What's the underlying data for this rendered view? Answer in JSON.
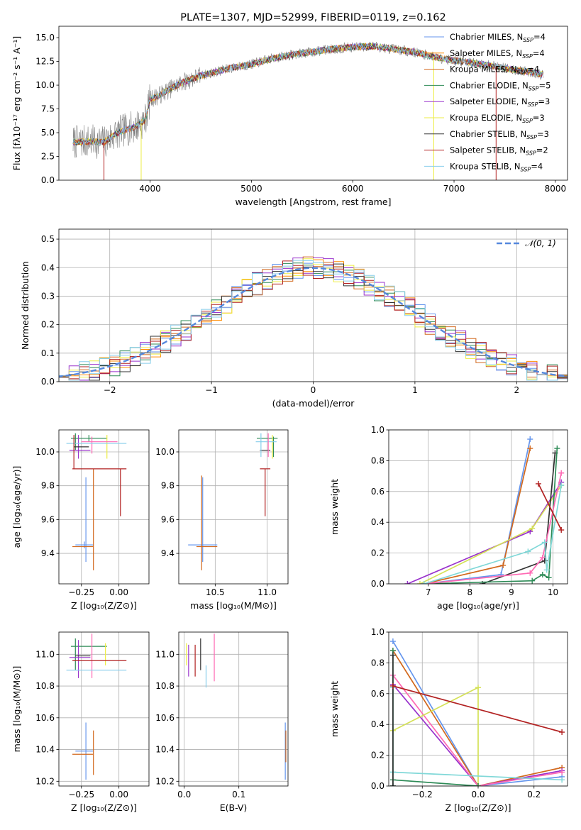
{
  "chart_data": [
    {
      "type": "line",
      "title": "PLATE=1307, MJD=52999, FIBERID=0119, z=0.162",
      "xlabel": "wavelength [Angstrom, rest frame]",
      "ylabel": "Flux [fλ10⁻¹⁷ erg cm⁻² s⁻¹ A⁻¹]",
      "xlim": [
        3100,
        8120
      ],
      "ylim": [
        0,
        16.2
      ],
      "xticks": [
        4000,
        5000,
        6000,
        7000,
        8000
      ],
      "yticks": [
        0.0,
        2.5,
        5.0,
        7.5,
        10.0,
        12.5,
        15.0
      ],
      "ytick_labels": [
        "0.0",
        "2.5",
        "5.0",
        "7.5",
        "10.0",
        "12.5",
        "15.0"
      ],
      "grid": false,
      "legend_position": "right",
      "continuum": {
        "x": [
          3250,
          3400,
          3550,
          3650,
          3750,
          3850,
          3950,
          4000,
          4100,
          4300,
          4500,
          4800,
          5000,
          5200,
          5400,
          5600,
          5800,
          6000,
          6200,
          6400,
          6600,
          6800,
          7000,
          7200,
          7400,
          7600,
          7800,
          7870
        ],
        "y": [
          4.0,
          4.1,
          4.0,
          4.8,
          5.3,
          5.6,
          6.3,
          8.5,
          9.0,
          10.2,
          11.0,
          11.8,
          12.2,
          12.8,
          13.2,
          13.5,
          13.8,
          14.0,
          14.1,
          13.8,
          13.5,
          13.0,
          12.6,
          12.3,
          12.0,
          11.6,
          11.3,
          11.1
        ]
      },
      "series": [
        {
          "name": "Chabrier MILES, N_SSP=4",
          "color": "#6495ed"
        },
        {
          "name": "Salpeter MILES, N_SSP=4",
          "color": "#ff8c00"
        },
        {
          "name": "Kroupa MILES, N_SSP=4",
          "color": "#d2691e"
        },
        {
          "name": "Chabrier ELODIE, N_SSP=5",
          "color": "#2e8b57"
        },
        {
          "name": "Salpeter ELODIE, N_SSP=3",
          "color": "#9932cc"
        },
        {
          "name": "Kroupa ELODIE, N_SSP=3",
          "color": "#eeee44"
        },
        {
          "name": "Chabrier STELIB, N_SSP=3",
          "color": "#333333"
        },
        {
          "name": "Salpeter STELIB, N_SSP=2",
          "color": "#b22222"
        },
        {
          "name": "Kroupa STELIB, N_SSP=4",
          "color": "#87ceeb"
        }
      ],
      "legend": [
        {
          "name": "Chabrier MILES, N",
          "sub": "SSP",
          "tail": "=4"
        },
        {
          "name": "Salpeter MILES, N",
          "sub": "SSP",
          "tail": "=4"
        },
        {
          "name": "Kroupa MILES, N",
          "sub": "SSP",
          "tail": "=4"
        },
        {
          "name": "Chabrier ELODIE, N",
          "sub": "SSP",
          "tail": "=5"
        },
        {
          "name": "Salpeter ELODIE, N",
          "sub": "SSP",
          "tail": "=3"
        },
        {
          "name": "Kroupa ELODIE, N",
          "sub": "SSP",
          "tail": "=3"
        },
        {
          "name": "Chabrier STELIB, N",
          "sub": "SSP",
          "tail": "=3"
        },
        {
          "name": "Salpeter STELIB, N",
          "sub": "SSP",
          "tail": "=2"
        },
        {
          "name": "Kroupa STELIB, N",
          "sub": "SSP",
          "tail": "=4"
        }
      ],
      "data_color": "#808080"
    },
    {
      "type": "histogram",
      "xlabel": "(data-model)/error",
      "ylabel": "Normed distribution",
      "xlim": [
        -2.5,
        2.5
      ],
      "ylim": [
        0,
        0.535
      ],
      "xticks": [
        -2,
        -1,
        0,
        1,
        2
      ],
      "xtick_labels": [
        "−2",
        "−1",
        "0",
        "1",
        "2"
      ],
      "yticks": [
        0.0,
        0.1,
        0.2,
        0.3,
        0.4,
        0.5
      ],
      "ytick_labels": [
        "0.0",
        "0.1",
        "0.2",
        "0.3",
        "0.4",
        "0.5"
      ],
      "grid": true,
      "bins": {
        "start": -2.5,
        "width": 0.1,
        "count": 50
      },
      "gaussian": {
        "mean": 0,
        "sigma": 1,
        "label": "𝒩(0, 1)",
        "color": "#5588dd"
      },
      "series_colors": [
        "#6495ed",
        "#ff8c00",
        "#d2691e",
        "#2e8b57",
        "#9932cc",
        "#eeee44",
        "#333333",
        "#b22222",
        "#87ceeb"
      ]
    },
    {
      "type": "scatter",
      "name": "age-vs-metallicity",
      "xlabel": "Z [log₁₀(Z/Z⊙)]",
      "ylabel": "age  [log₁₀(age/yr)]",
      "xlim": [
        -0.4,
        0.2
      ],
      "ylim": [
        9.22,
        10.13
      ],
      "xticks": [
        -0.25,
        0.0
      ],
      "xtick_labels": [
        "−0.25",
        "0.00"
      ],
      "yticks": [
        9.4,
        9.6,
        9.8,
        10.0
      ],
      "ytick_labels": [
        "9.4",
        "9.6",
        "9.8",
        "10.0"
      ],
      "grid": true,
      "errorbars": [
        {
          "x": -0.23,
          "xerr": 0.06,
          "y": 9.45,
          "yerr": 0.02,
          "color": "#6495ed"
        },
        {
          "x": -0.22,
          "xerr": 0.0,
          "y": 9.6,
          "yerr": 0.25,
          "color": "#6495ed"
        },
        {
          "x": -0.24,
          "xerr": 0.07,
          "y": 9.44,
          "yerr": 0.0,
          "color": "#d2691e"
        },
        {
          "x": -0.17,
          "xerr": 0.0,
          "y": 9.6,
          "yerr": 0.3,
          "color": "#d2691e"
        },
        {
          "x": -0.2,
          "xerr": 0.12,
          "y": 10.08,
          "yerr": 0.02,
          "color": "#2e8b57"
        },
        {
          "x": -0.29,
          "xerr": 0.0,
          "y": 10.06,
          "yerr": 0.05,
          "color": "#2e8b57"
        },
        {
          "x": -0.26,
          "xerr": 0.07,
          "y": 10.01,
          "yerr": 0.0,
          "color": "#9932cc"
        },
        {
          "x": -0.27,
          "xerr": 0.0,
          "y": 10.03,
          "yerr": 0.07,
          "color": "#9932cc"
        },
        {
          "x": -0.08,
          "xerr": 0.0,
          "y": 10.03,
          "yerr": 0.07,
          "color": "#eeee44"
        },
        {
          "x": -0.25,
          "xerr": 0.05,
          "y": 10.03,
          "yerr": 0.0,
          "color": "#333333"
        },
        {
          "x": -0.13,
          "xerr": 0.12,
          "y": 10.06,
          "yerr": 0.0,
          "color": "#ff69b4"
        },
        {
          "x": -0.18,
          "xerr": 0.0,
          "y": 10.04,
          "yerr": 0.05,
          "color": "#ff69b4"
        },
        {
          "x": -0.15,
          "xerr": 0.2,
          "y": 10.05,
          "yerr": 0.0,
          "color": "#87ceeb"
        },
        {
          "x": -0.13,
          "xerr": 0.18,
          "y": 9.9,
          "yerr": 0.0,
          "color": "#b22222"
        },
        {
          "x": -0.3,
          "xerr": 0.0,
          "y": 10.0,
          "yerr": 0.1,
          "color": "#b22222"
        },
        {
          "x": 0.01,
          "xerr": 0.0,
          "y": 9.76,
          "yerr": 0.14,
          "color": "#b22222"
        }
      ]
    },
    {
      "type": "scatter",
      "name": "age-vs-mass",
      "xlabel": "mass [log₁₀(M/M⊙)]",
      "xlim": [
        10.15,
        11.2
      ],
      "ylim": [
        9.22,
        10.13
      ],
      "xticks": [
        10.5,
        11.0
      ],
      "xtick_labels": [
        "10.5",
        "11.0"
      ],
      "yticks": [
        9.4,
        9.6,
        9.8,
        10.0
      ],
      "ytick_labels": [
        "9.4",
        "9.6",
        "9.8",
        "10.0"
      ],
      "grid": true,
      "errorbars": [
        {
          "x": 10.38,
          "xerr": 0.14,
          "y": 9.45,
          "yerr": 0.0,
          "color": "#6495ed"
        },
        {
          "x": 10.38,
          "xerr": 0.0,
          "y": 9.6,
          "yerr": 0.25,
          "color": "#6495ed"
        },
        {
          "x": 10.42,
          "xerr": 0.1,
          "y": 9.44,
          "yerr": 0.0,
          "color": "#d2691e"
        },
        {
          "x": 10.37,
          "xerr": 0.0,
          "y": 9.58,
          "yerr": 0.28,
          "color": "#d2691e"
        },
        {
          "x": 11.0,
          "xerr": 0.1,
          "y": 10.08,
          "yerr": 0.0,
          "color": "#2e8b57"
        },
        {
          "x": 11.06,
          "xerr": 0.0,
          "y": 10.03,
          "yerr": 0.06,
          "color": "#2e8b57"
        },
        {
          "x": 10.98,
          "xerr": 0.05,
          "y": 10.01,
          "yerr": 0.0,
          "color": "#333333"
        },
        {
          "x": 11.05,
          "xerr": 0.0,
          "y": 10.03,
          "yerr": 0.07,
          "color": "#eeee44"
        },
        {
          "x": 10.99,
          "xerr": 0.1,
          "y": 10.06,
          "yerr": 0.0,
          "color": "#87ceeb"
        },
        {
          "x": 10.94,
          "xerr": 0.0,
          "y": 10.04,
          "yerr": 0.07,
          "color": "#87ceeb"
        },
        {
          "x": 10.98,
          "xerr": 0.05,
          "y": 9.9,
          "yerr": 0.0,
          "color": "#b22222"
        },
        {
          "x": 10.98,
          "xerr": 0.0,
          "y": 9.76,
          "yerr": 0.14,
          "color": "#b22222"
        },
        {
          "x": 11.01,
          "xerr": 0.0,
          "y": 10.04,
          "yerr": 0.07,
          "color": "#ff69b4"
        }
      ]
    },
    {
      "type": "line",
      "name": "mass-weight-vs-age",
      "xlabel": "age  [log₁₀(age/yr)]",
      "ylabel": "mass weight",
      "xlim": [
        6.05,
        10.35
      ],
      "ylim": [
        0,
        1.0
      ],
      "xticks": [
        7,
        8,
        9,
        10
      ],
      "xtick_labels": [
        "7",
        "8",
        "9",
        "10"
      ],
      "yticks": [
        0.0,
        0.2,
        0.4,
        0.6,
        0.8,
        1.0
      ],
      "ytick_labels": [
        "0.0",
        "0.2",
        "0.4",
        "0.6",
        "0.8",
        "1.0"
      ],
      "grid": true,
      "series": [
        {
          "color": "#6495ed",
          "x": [
            6.9,
            8.75,
            9.45
          ],
          "y": [
            0.0,
            0.06,
            0.94
          ]
        },
        {
          "color": "#d2691e",
          "x": [
            6.9,
            8.8,
            9.45
          ],
          "y": [
            0.0,
            0.12,
            0.88
          ]
        },
        {
          "color": "#9932cc",
          "x": [
            6.5,
            9.45,
            10.2
          ],
          "y": [
            0.0,
            0.34,
            0.66
          ]
        },
        {
          "color": "#d4e157",
          "x": [
            6.8,
            9.5,
            10.2
          ],
          "y": [
            0.0,
            0.36,
            0.64
          ]
        },
        {
          "color": "#333333",
          "x": [
            8.3,
            9.8,
            10.05
          ],
          "y": [
            0.0,
            0.15,
            0.85
          ]
        },
        {
          "color": "#2e8b57",
          "x": [
            6.9,
            9.5,
            9.75,
            9.9,
            10.1
          ],
          "y": [
            0.0,
            0.02,
            0.06,
            0.04,
            0.88
          ]
        },
        {
          "color": "#ff69b4",
          "x": [
            6.9,
            9.45,
            9.75,
            10.2
          ],
          "y": [
            0.0,
            0.07,
            0.17,
            0.72
          ]
        },
        {
          "color": "#80d8d8",
          "x": [
            6.9,
            9.4,
            9.8,
            9.85,
            10.2
          ],
          "y": [
            0.0,
            0.21,
            0.27,
            0.09,
            0.64
          ]
        },
        {
          "color": "#b22222",
          "x": [
            9.65,
            10.2
          ],
          "y": [
            0.65,
            0.35
          ]
        }
      ]
    },
    {
      "type": "scatter",
      "name": "mass-vs-metallicity",
      "xlabel": "Z [log₁₀(Z/Z⊙)]",
      "ylabel": "mass [log₁₀(M/M⊙)]",
      "xlim": [
        -0.4,
        0.2
      ],
      "ylim": [
        10.17,
        11.14
      ],
      "xticks": [
        -0.25,
        0.0
      ],
      "xtick_labels": [
        "−0.25",
        "0.00"
      ],
      "yticks": [
        10.2,
        10.4,
        10.6,
        10.8,
        11.0
      ],
      "ytick_labels": [
        "10.2",
        "10.4",
        "10.6",
        "10.8",
        "11.0"
      ],
      "grid": true,
      "errorbars": [
        {
          "x": -0.23,
          "xerr": 0.06,
          "y": 10.39,
          "yerr": 0.0,
          "color": "#6495ed"
        },
        {
          "x": -0.22,
          "xerr": 0.0,
          "y": 10.39,
          "yerr": 0.18,
          "color": "#6495ed"
        },
        {
          "x": -0.24,
          "xerr": 0.07,
          "y": 10.37,
          "yerr": 0.0,
          "color": "#d2691e"
        },
        {
          "x": -0.17,
          "xerr": 0.0,
          "y": 10.38,
          "yerr": 0.14,
          "color": "#d2691e"
        },
        {
          "x": -0.2,
          "xerr": 0.12,
          "y": 11.05,
          "yerr": 0.0,
          "color": "#2e8b57"
        },
        {
          "x": -0.29,
          "xerr": 0.0,
          "y": 11.0,
          "yerr": 0.1,
          "color": "#2e8b57"
        },
        {
          "x": -0.26,
          "xerr": 0.07,
          "y": 10.98,
          "yerr": 0.0,
          "color": "#9932cc"
        },
        {
          "x": -0.27,
          "xerr": 0.0,
          "y": 10.97,
          "yerr": 0.12,
          "color": "#9932cc"
        },
        {
          "x": -0.09,
          "xerr": 0.0,
          "y": 11.0,
          "yerr": 0.07,
          "color": "#eeee44"
        },
        {
          "x": -0.24,
          "xerr": 0.05,
          "y": 10.99,
          "yerr": 0.0,
          "color": "#333333"
        },
        {
          "x": -0.18,
          "xerr": 0.0,
          "y": 10.99,
          "yerr": 0.14,
          "color": "#ff69b4"
        },
        {
          "x": -0.15,
          "xerr": 0.2,
          "y": 10.9,
          "yerr": 0.0,
          "color": "#87ceeb"
        },
        {
          "x": -0.13,
          "xerr": 0.18,
          "y": 10.96,
          "yerr": 0.0,
          "color": "#b22222"
        }
      ]
    },
    {
      "type": "scatter",
      "name": "mass-vs-ebv",
      "xlabel": "E(B-V)",
      "xlim": [
        -0.01,
        0.19
      ],
      "ylim": [
        10.17,
        11.14
      ],
      "xticks": [
        0.0,
        0.1
      ],
      "xtick_labels": [
        "0.0",
        "0.1"
      ],
      "yticks": [
        10.2,
        10.4,
        10.6,
        10.8,
        11.0
      ],
      "ytick_labels": [
        "10.2",
        "10.4",
        "10.6",
        "10.8",
        "11.0"
      ],
      "grid": true,
      "errorbars": [
        {
          "x": 0.185,
          "xerr": 0.0,
          "y": 10.39,
          "yerr": 0.18,
          "color": "#6495ed"
        },
        {
          "x": 0.186,
          "xerr": 0.0,
          "y": 10.42,
          "yerr": 0.1,
          "color": "#d2691e"
        },
        {
          "x": 0.008,
          "xerr": 0.0,
          "y": 10.96,
          "yerr": 0.1,
          "color": "#9932cc"
        },
        {
          "x": 0.03,
          "xerr": 0.0,
          "y": 11.0,
          "yerr": 0.1,
          "color": "#333333"
        },
        {
          "x": 0.02,
          "xerr": 0.0,
          "y": 10.96,
          "yerr": 0.1,
          "color": "#b22222"
        },
        {
          "x": 0.004,
          "xerr": 0.0,
          "y": 11.0,
          "yerr": 0.07,
          "color": "#eeee44"
        },
        {
          "x": 0.055,
          "xerr": 0.0,
          "y": 10.98,
          "yerr": 0.15,
          "color": "#ff69b4"
        },
        {
          "x": 0.04,
          "xerr": 0.0,
          "y": 10.86,
          "yerr": 0.07,
          "color": "#87ceeb"
        }
      ]
    },
    {
      "type": "line",
      "name": "mass-weight-vs-metallicity",
      "xlabel": "Z [log₁₀(Z/Z⊙)]",
      "ylabel": "mass weight",
      "xlim": [
        -0.32,
        0.32
      ],
      "ylim": [
        0,
        1.0
      ],
      "xticks": [
        -0.2,
        0.0,
        0.2
      ],
      "xtick_labels": [
        "−0.2",
        "0.0",
        "0.2"
      ],
      "yticks": [
        0.0,
        0.2,
        0.4,
        0.6,
        0.8,
        1.0
      ],
      "ytick_labels": [
        "0.0",
        "0.2",
        "0.4",
        "0.6",
        "0.8",
        "1.0"
      ],
      "grid": true,
      "series": [
        {
          "color": "#6495ed",
          "x": [
            -0.305,
            0.0,
            0.3
          ],
          "y": [
            0.94,
            0.0,
            0.06
          ]
        },
        {
          "color": "#d2691e",
          "x": [
            -0.305,
            0.0,
            0.3
          ],
          "y": [
            0.88,
            0.0,
            0.12
          ]
        },
        {
          "color": "#9932cc",
          "x": [
            -0.305,
            0.0,
            0.3
          ],
          "y": [
            0.66,
            0.0,
            0.1
          ]
        },
        {
          "color": "#ff69b4",
          "x": [
            -0.305,
            0.0,
            0.3
          ],
          "y": [
            0.72,
            0.0,
            0.09
          ]
        },
        {
          "color": "#d4e157",
          "x": [
            -0.305,
            0.0,
            0.0
          ],
          "y": [
            0.36,
            0.64,
            0.0
          ]
        },
        {
          "color": "#80d8d8",
          "x": [
            -0.305,
            0.3
          ],
          "y": [
            0.09,
            0.04
          ]
        },
        {
          "color": "#80d8d8",
          "x": [
            -0.305,
            -0.305
          ],
          "y": [
            0.09,
            0.64
          ]
        },
        {
          "color": "#2e8b57",
          "x": [
            -0.305,
            0.0
          ],
          "y": [
            0.04,
            0.0
          ]
        },
        {
          "color": "#2e8b57",
          "x": [
            -0.305,
            -0.305
          ],
          "y": [
            0.0,
            0.88
          ]
        },
        {
          "color": "#333333",
          "x": [
            -0.305,
            -0.305
          ],
          "y": [
            0.0,
            0.85
          ]
        },
        {
          "color": "#b22222",
          "x": [
            -0.305,
            0.3
          ],
          "y": [
            0.65,
            0.35
          ]
        }
      ]
    }
  ]
}
